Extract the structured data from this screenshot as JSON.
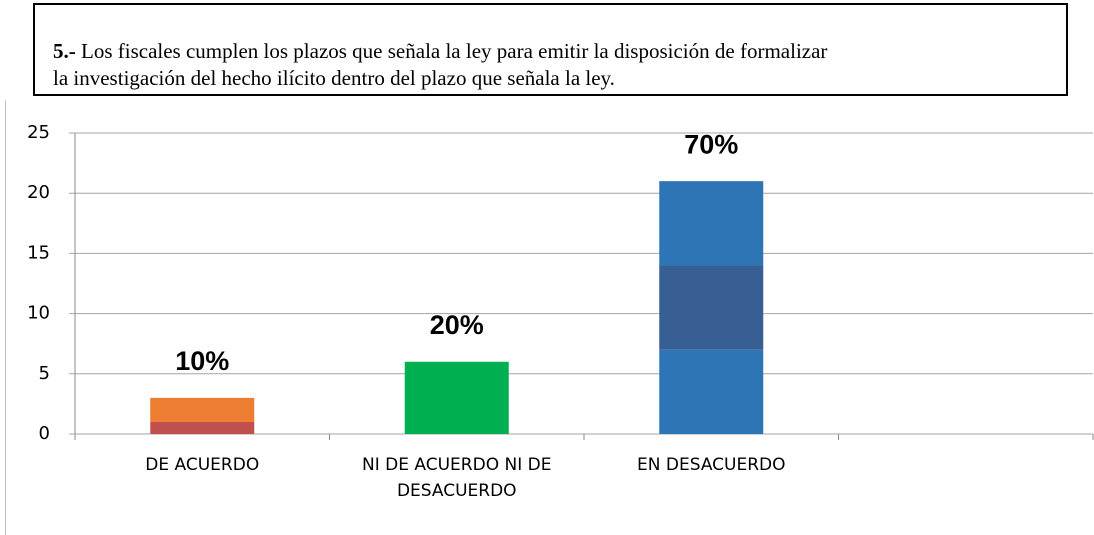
{
  "chart_data": {
    "type": "bar",
    "title_number": "5.-",
    "title_lines": [
      "Los fiscales cumplen los plazos que señala la ley para emitir la disposición de formalizar",
      "la investigación del hecho ilícito dentro del plazo que señala la ley."
    ],
    "categories": [
      "DE ACUERDO",
      "NI DE ACUERDO NI DE DESACUERDO",
      "EN DESACUERDO",
      null
    ],
    "series": [
      {
        "values": [
          1,
          6,
          7,
          null
        ],
        "colors": [
          "#c0504d",
          "#00b050",
          "#2e75b6",
          null
        ]
      },
      {
        "values": [
          2,
          0,
          7,
          null
        ],
        "colors": [
          "#ed7d31",
          "#00b050",
          "#375f93",
          null
        ]
      },
      {
        "values": [
          0,
          0,
          7,
          null
        ],
        "colors": [
          "#ed7d31",
          "#00b050",
          "#2e75b6",
          null
        ]
      }
    ],
    "annotations": [
      "10%",
      "20%",
      "70%"
    ],
    "ylim": [
      0,
      25
    ],
    "yticks": [
      0,
      5,
      10,
      15,
      20,
      25
    ],
    "grid": true
  }
}
